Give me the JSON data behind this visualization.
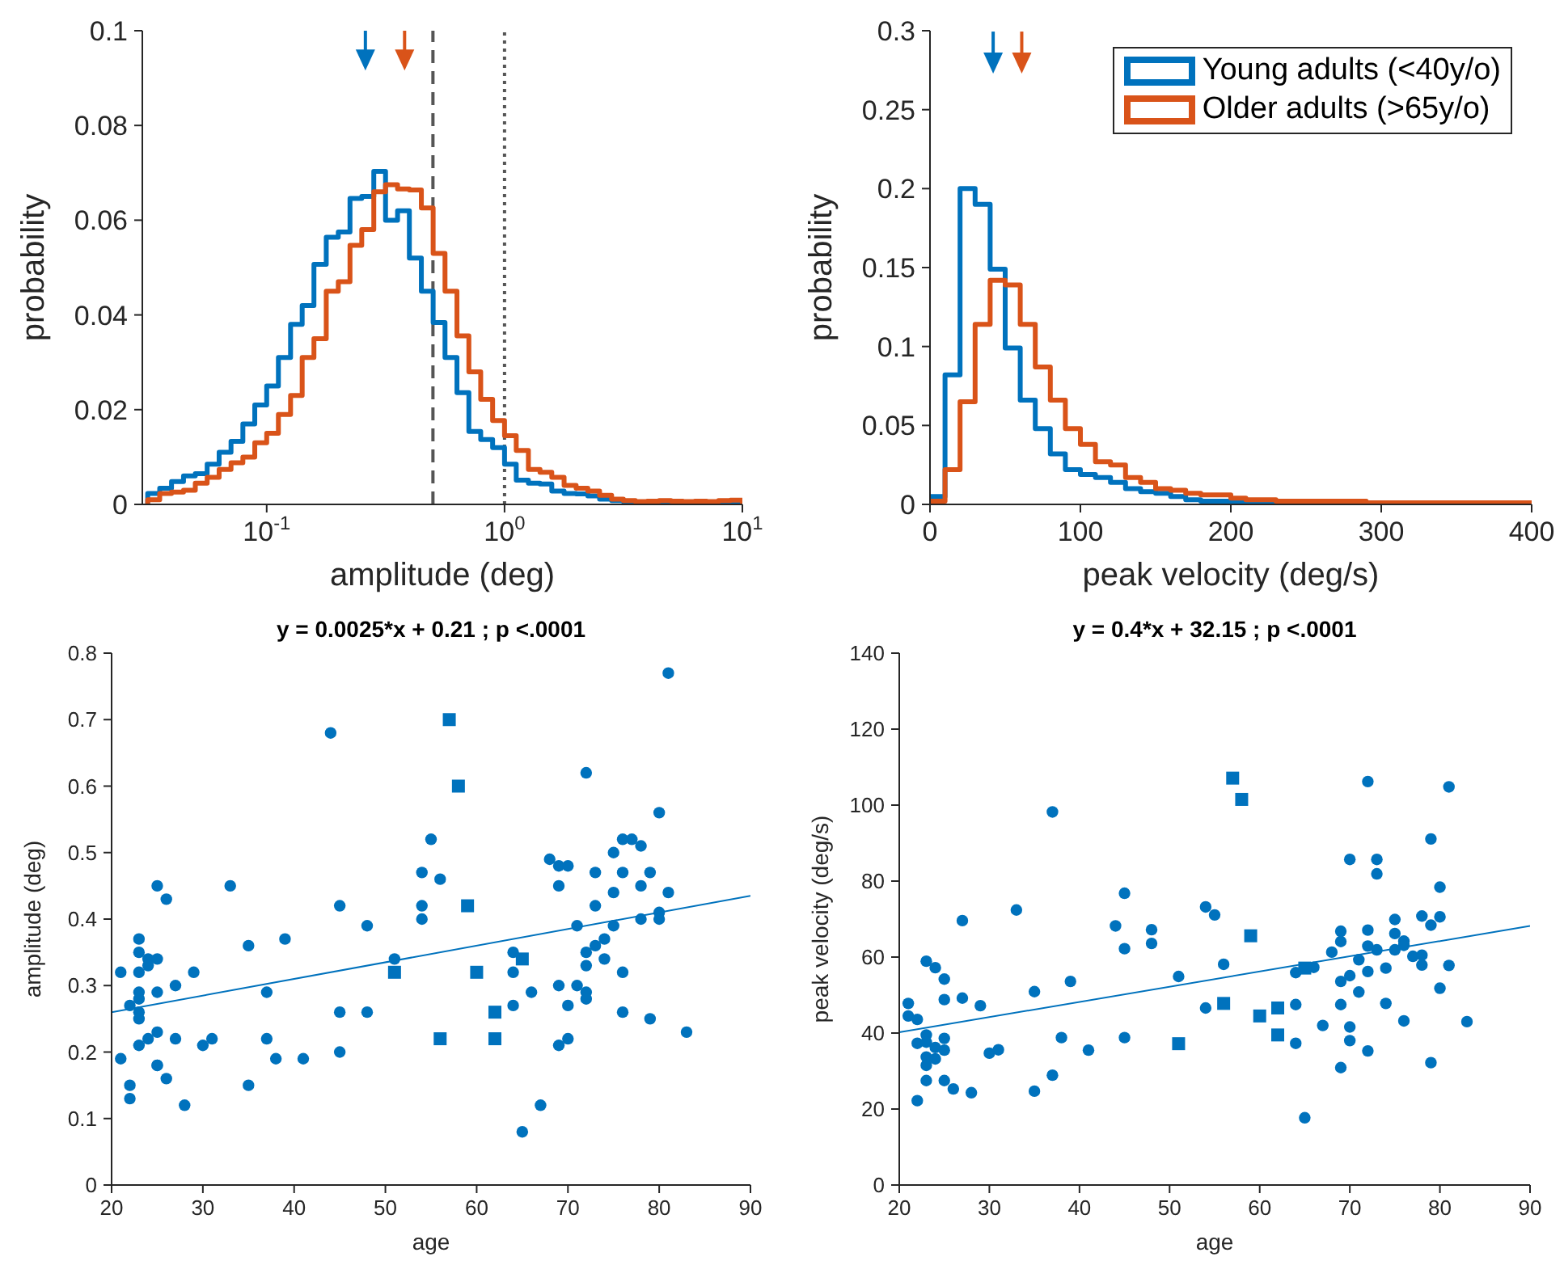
{
  "chart_data": [
    {
      "type": "histogram",
      "xlabel": "amplitude (deg)",
      "ylabel": "probability",
      "log": "x",
      "xlim": [
        0.03,
        10
      ],
      "xticks": [
        {
          "value": 0.1,
          "label": "10$^{-1}$"
        },
        {
          "value": 1,
          "label": "10$^{0}$"
        },
        {
          "value": 10,
          "label": "10$^{1}$"
        }
      ],
      "ylim": [
        0,
        0.1
      ],
      "yticks": [
        0,
        0.02,
        0.04,
        0.06,
        0.08,
        0.1
      ],
      "bins": [
        0.0316,
        0.0355,
        0.0398,
        0.0447,
        0.0501,
        0.0562,
        0.0631,
        0.0708,
        0.0794,
        0.0891,
        0.1,
        0.112,
        0.126,
        0.141,
        0.158,
        0.178,
        0.2,
        0.224,
        0.251,
        0.282,
        0.316,
        0.355,
        0.398,
        0.447,
        0.501,
        0.562,
        0.631,
        0.708,
        0.794,
        0.891,
        1,
        1.12,
        1.26,
        1.41,
        1.58,
        1.78,
        2,
        2.24,
        2.51,
        2.82,
        3.16,
        3.55,
        3.98,
        4.47,
        5.01,
        5.62,
        6.31,
        7.08,
        7.94,
        8.91,
        10
      ],
      "series": [
        {
          "color": "#0072bd",
          "values": [
            0.0023,
            0.0034,
            0.0048,
            0.006,
            0.0065,
            0.0085,
            0.011,
            0.0133,
            0.017,
            0.021,
            0.025,
            0.031,
            0.038,
            0.042,
            0.0507,
            0.0564,
            0.0575,
            0.0646,
            0.065,
            0.0703,
            0.06,
            0.062,
            0.052,
            0.045,
            0.0384,
            0.031,
            0.0236,
            0.0154,
            0.0137,
            0.012,
            0.0085,
            0.0051,
            0.0045,
            0.0043,
            0.0028,
            0.0023,
            0.0022,
            0.0018,
            0.0011,
            0.0008,
            0.0006,
            0.0005,
            0.0004,
            0.0004,
            0.0003,
            0.0003,
            0.0003,
            0.0002,
            0.0002,
            0.0002
          ]
        },
        {
          "color": "#d95319",
          "values": [
            0.001,
            0.0023,
            0.0026,
            0.003,
            0.0045,
            0.0057,
            0.0074,
            0.0088,
            0.01,
            0.013,
            0.015,
            0.019,
            0.023,
            0.031,
            0.035,
            0.045,
            0.047,
            0.0547,
            0.058,
            0.066,
            0.0675,
            0.0666,
            0.0664,
            0.0626,
            0.053,
            0.045,
            0.0356,
            0.028,
            0.0222,
            0.0177,
            0.0145,
            0.0114,
            0.0074,
            0.0068,
            0.0057,
            0.004,
            0.0034,
            0.0028,
            0.0019,
            0.0011,
            0.0008,
            0.0006,
            0.0007,
            0.0008,
            0.0007,
            0.0006,
            0.0007,
            0.0006,
            0.0008,
            0.0009
          ]
        },
        {
          "type": "scatter",
          "marker": "triangle",
          "color": "#0072bd",
          "x": [
            0.26
          ],
          "values": [
            0.094
          ]
        },
        {
          "type": "scatter",
          "marker": "triangle",
          "color": "#d95319",
          "x": [
            0.38
          ],
          "values": [
            0.094
          ]
        }
      ],
      "ref_lines": [
        {
          "axis": "x",
          "value": 0.5,
          "color": "#555555",
          "line_style": "dashed"
        },
        {
          "axis": "x",
          "value": 1,
          "color": "#555555",
          "line_style": "dotted"
        }
      ]
    },
    {
      "type": "histogram",
      "xlabel": "peak velocity (deg/s)",
      "ylabel": "probability",
      "legend": "top right",
      "xlim": [
        0,
        400
      ],
      "xticks": [
        0,
        100,
        200,
        300,
        400
      ],
      "ylim": [
        0,
        0.3
      ],
      "yticks": [
        0,
        0.05,
        0.1,
        0.15,
        0.2,
        0.25,
        0.3
      ],
      "bins": [
        0,
        10,
        20,
        30,
        40,
        50,
        60,
        70,
        80,
        90,
        100,
        110,
        120,
        130,
        140,
        150,
        160,
        170,
        180,
        190,
        200,
        210,
        220,
        230,
        240,
        250,
        260,
        270,
        280,
        290,
        300,
        310,
        320,
        330,
        340,
        350,
        360,
        370,
        380,
        390,
        400
      ],
      "series": [
        {
          "name": "Young adults (<40y/o)",
          "color": "#0072bd",
          "values": [
            0.005,
            0.082,
            0.2,
            0.19,
            0.149,
            0.099,
            0.066,
            0.048,
            0.032,
            0.022,
            0.019,
            0.017,
            0.014,
            0.01,
            0.008,
            0.007,
            0.005,
            0.003,
            0.002,
            0.002,
            0.002,
            0.001,
            0.001,
            0.001,
            0.001,
            0.001,
            0.001,
            0.001,
            0.001,
            0,
            0,
            0,
            0,
            0,
            0,
            0,
            0,
            0,
            0,
            0
          ]
        },
        {
          "name": "Older adults (>65y/o)",
          "color": "#d95319",
          "values": [
            0.002,
            0.022,
            0.065,
            0.114,
            0.142,
            0.139,
            0.114,
            0.087,
            0.066,
            0.048,
            0.038,
            0.027,
            0.025,
            0.017,
            0.014,
            0.01,
            0.009,
            0.007,
            0.006,
            0.006,
            0.004,
            0.003,
            0.003,
            0.002,
            0.002,
            0.002,
            0.002,
            0.002,
            0.002,
            0.001,
            0.001,
            0.001,
            0.001,
            0.001,
            0.001,
            0.001,
            0.001,
            0.001,
            0.001,
            0.001
          ]
        },
        {
          "type": "scatter",
          "marker": "triangle",
          "color": "#0072bd",
          "x": [
            42
          ],
          "values": [
            0.28
          ]
        },
        {
          "type": "scatter",
          "marker": "triangle",
          "color": "#d95319",
          "x": [
            61
          ],
          "values": [
            0.28
          ]
        }
      ]
    },
    {
      "type": "scatter",
      "title": "y = 0.0025*x + 0.21 ; p <.0001",
      "xlabel": "age",
      "ylabel": "amplitude (deg)",
      "xlim": [
        20,
        90
      ],
      "xticks": [
        20,
        30,
        40,
        50,
        60,
        70,
        80,
        90
      ],
      "ylim": [
        0,
        0.8
      ],
      "yticks": [
        0,
        0.1,
        0.2,
        0.3,
        0.4,
        0.5,
        0.6,
        0.7,
        0.8
      ],
      "series": [
        {
          "marker": "circle",
          "color": "#0072bd",
          "x": [
            21,
            21,
            22,
            22,
            22,
            23,
            23,
            23,
            23,
            23,
            23,
            23,
            23,
            24,
            24,
            24,
            25,
            25,
            25,
            25,
            25,
            25,
            26,
            26,
            27,
            27,
            28,
            29,
            30,
            31,
            33,
            35,
            35,
            37,
            37,
            38,
            39,
            41,
            44,
            45,
            45,
            45,
            48,
            48,
            51,
            54,
            54,
            54,
            55,
            56,
            64,
            64,
            64,
            65,
            66,
            67,
            68,
            69,
            69,
            69,
            69,
            70,
            70,
            70,
            71,
            71,
            72,
            72,
            72,
            72,
            72,
            73,
            73,
            73,
            74,
            74,
            75,
            75,
            75,
            76,
            76,
            76,
            76,
            77,
            78,
            78,
            78,
            79,
            79,
            80,
            80,
            80,
            81,
            81,
            83
          ],
          "values": [
            0.32,
            0.19,
            0.27,
            0.15,
            0.13,
            0.37,
            0.35,
            0.32,
            0.29,
            0.28,
            0.26,
            0.25,
            0.21,
            0.34,
            0.33,
            0.22,
            0.45,
            0.34,
            0.29,
            0.23,
            0.18,
            0.18,
            0.43,
            0.16,
            0.3,
            0.22,
            0.12,
            0.32,
            0.21,
            0.22,
            0.45,
            0.36,
            0.15,
            0.29,
            0.22,
            0.19,
            0.37,
            0.19,
            0.68,
            0.42,
            0.26,
            0.2,
            0.39,
            0.26,
            0.34,
            0.47,
            0.42,
            0.4,
            0.52,
            0.46,
            0.35,
            0.32,
            0.27,
            0.08,
            0.29,
            0.12,
            0.49,
            0.48,
            0.45,
            0.3,
            0.21,
            0.48,
            0.27,
            0.22,
            0.39,
            0.3,
            0.62,
            0.35,
            0.33,
            0.29,
            0.28,
            0.47,
            0.42,
            0.36,
            0.37,
            0.34,
            0.5,
            0.44,
            0.39,
            0.52,
            0.47,
            0.32,
            0.26,
            0.52,
            0.51,
            0.45,
            0.4,
            0.47,
            0.25,
            0.56,
            0.41,
            0.4,
            0.77,
            0.44,
            0.23
          ]
        },
        {
          "marker": "square",
          "color": "#0072bd",
          "x": [
            57,
            58,
            59,
            51,
            60,
            56,
            62,
            62,
            65
          ],
          "values": [
            0.7,
            0.6,
            0.42,
            0.32,
            0.32,
            0.22,
            0.26,
            0.22,
            0.34
          ]
        },
        {
          "type": "line",
          "color": "#0072bd",
          "x": [
            20,
            90
          ],
          "values": [
            0.26,
            0.435
          ]
        }
      ]
    },
    {
      "type": "scatter",
      "title": "y = 0.4*x + 32.15 ; p <.0001",
      "xlabel": "age",
      "ylabel": "peak velocity (deg/s)",
      "xlim": [
        20,
        90
      ],
      "xticks": [
        20,
        30,
        40,
        50,
        60,
        70,
        80,
        90
      ],
      "ylim": [
        0,
        140
      ],
      "yticks": [
        0,
        20,
        40,
        60,
        80,
        100,
        120,
        140
      ],
      "series": [
        {
          "marker": "circle",
          "color": "#0072bd",
          "x": [
            21,
            21,
            22,
            22,
            22,
            23,
            23,
            23,
            23,
            23,
            23,
            24,
            24,
            24,
            25,
            25,
            25,
            25,
            25,
            26,
            27,
            27,
            28,
            29,
            30,
            31,
            33,
            35,
            35,
            37,
            37,
            38,
            39,
            41,
            44,
            45,
            45,
            45,
            48,
            48,
            51,
            54,
            54,
            55,
            56,
            64,
            64,
            64,
            65,
            66,
            67,
            68,
            69,
            69,
            69,
            69,
            69,
            70,
            70,
            70,
            70,
            71,
            71,
            72,
            72,
            72,
            72,
            72,
            73,
            73,
            73,
            74,
            74,
            75,
            75,
            75,
            76,
            76,
            76,
            77,
            78,
            78,
            78,
            79,
            79,
            79,
            80,
            80,
            80,
            81,
            81,
            83
          ],
          "values": [
            47.8,
            44.5,
            43.6,
            37.3,
            22.2,
            58.9,
            39.5,
            37.6,
            33.7,
            31.5,
            27.5,
            57.2,
            36.2,
            33.2,
            54.2,
            48.8,
            38.6,
            35.5,
            27.5,
            25.3,
            69.6,
            49.2,
            24.3,
            47.2,
            34.7,
            35.6,
            72.4,
            50.9,
            24.7,
            98.2,
            28.9,
            38.8,
            53.6,
            35.5,
            68.2,
            76.8,
            62.2,
            38.8,
            67.2,
            63.6,
            54.9,
            73.2,
            46.6,
            71.1,
            58.1,
            55.9,
            47.5,
            37.3,
            17.7,
            57.3,
            42,
            61.3,
            66.8,
            64.1,
            53.6,
            47.5,
            30.9,
            85.7,
            55.1,
            41.6,
            38,
            59.3,
            50.8,
            106.2,
            67.1,
            62.9,
            56.2,
            35.3,
            85.7,
            81.9,
            61.9,
            57.1,
            47.8,
            69.9,
            66.2,
            61.9,
            64.2,
            63.1,
            43.2,
            60.2,
            70.8,
            60.5,
            57.9,
            91.1,
            68.4,
            32.2,
            78.4,
            70.6,
            51.8,
            104.8,
            57.8,
            43
          ]
        },
        {
          "marker": "square",
          "color": "#0072bd",
          "x": [
            57,
            58,
            59,
            56,
            51,
            60,
            62,
            62,
            65
          ],
          "values": [
            107.1,
            101.5,
            65.6,
            47.8,
            37.2,
            44.5,
            46.6,
            39.5,
            57.1
          ]
        },
        {
          "type": "line",
          "color": "#0072bd",
          "x": [
            20,
            90
          ],
          "values": [
            40.2,
            68.2
          ]
        }
      ]
    }
  ]
}
